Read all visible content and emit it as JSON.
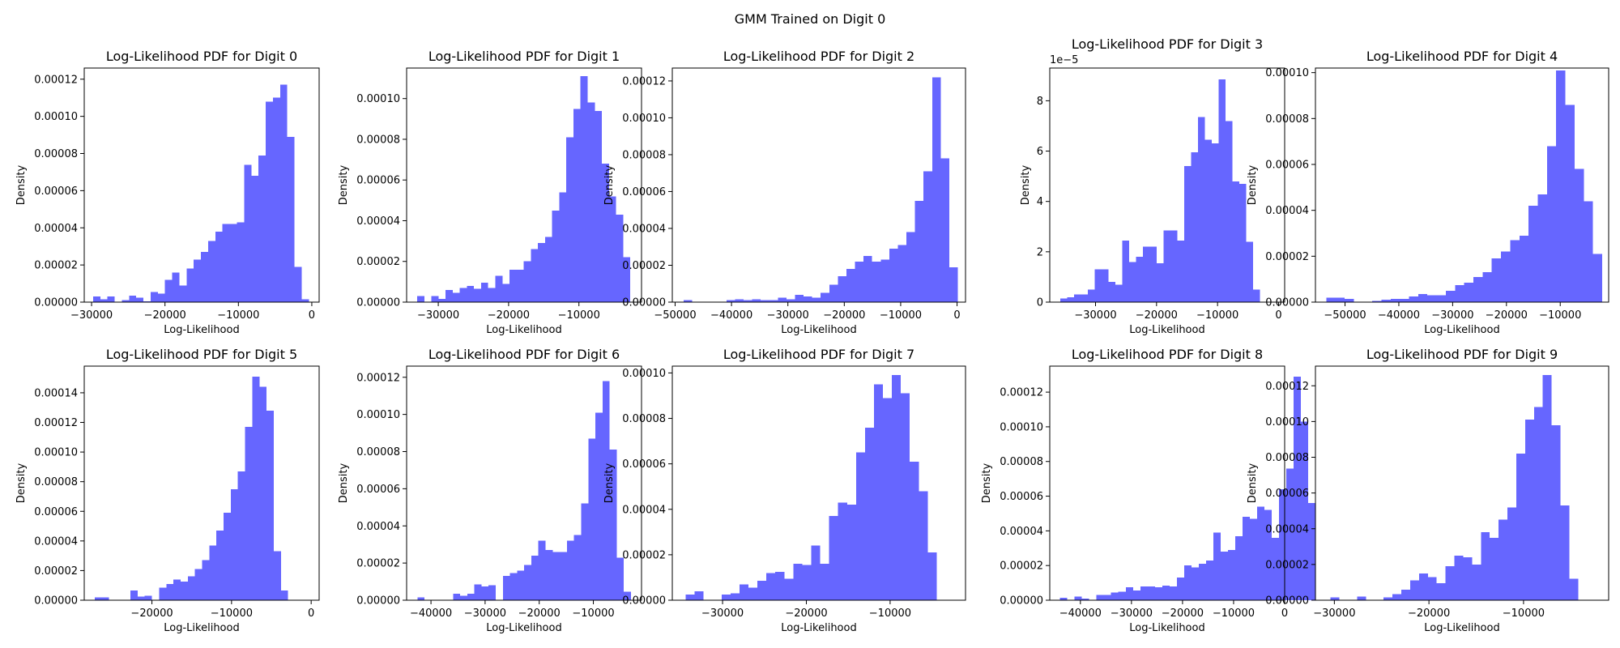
{
  "figure": {
    "suptitle": "GMM Trained on Digit 0"
  },
  "chart_data": [
    {
      "type": "bar",
      "title": "Log-Likelihood PDF for Digit 0",
      "xlabel": "Log-Likelihood",
      "ylabel": "Density",
      "xlim": [
        -31000,
        1000
      ],
      "ylim": [
        0,
        0.000126
      ],
      "xticks": [
        -30000,
        -20000,
        -10000,
        0
      ],
      "xtick_labels": [
        "−30000",
        "−20000",
        "−10000",
        "0"
      ],
      "yticks": [
        0,
        2e-05,
        4e-05,
        6e-05,
        8e-05,
        0.0001,
        0.00012
      ],
      "ytick_labels": [
        "0.00000",
        "0.00002",
        "0.00004",
        "0.00006",
        "0.00008",
        "0.00010",
        "0.00012"
      ],
      "offset_text": "",
      "bin_start": -29800,
      "bin_width": 980,
      "values": [
        3e-06,
        1.5e-06,
        3e-06,
        0,
        1e-06,
        3.5e-06,
        2.5e-06,
        5e-07,
        5.5e-06,
        4.5e-06,
        1.2e-05,
        1.6e-05,
        9e-06,
        1.8e-05,
        2.3e-05,
        2.7e-05,
        3.3e-05,
        3.8e-05,
        4.2e-05,
        4.2e-05,
        4.3e-05,
        7.4e-05,
        6.8e-05,
        7.9e-05,
        0.000108,
        0.00011,
        0.000117,
        8.9e-05,
        1.9e-05,
        1.5e-06
      ]
    },
    {
      "type": "bar",
      "title": "Log-Likelihood PDF for Digit 1",
      "xlabel": "Log-Likelihood",
      "ylabel": "Density",
      "xlim": [
        -34500,
        -1100
      ],
      "ylim": [
        0,
        0.000115
      ],
      "xticks": [
        -30000,
        -20000,
        -10000
      ],
      "xtick_labels": [
        "−30000",
        "−20000",
        "−10000"
      ],
      "yticks": [
        0,
        2e-05,
        4e-05,
        6e-05,
        8e-05,
        0.0001
      ],
      "ytick_labels": [
        "0.00000",
        "0.00002",
        "0.00004",
        "0.00006",
        "0.00008",
        "0.00010"
      ],
      "offset_text": "",
      "bin_start": -33000,
      "bin_width": 1010,
      "values": [
        3e-06,
        0,
        3e-06,
        1.5e-06,
        6e-06,
        4.5e-06,
        7e-06,
        8e-06,
        6.5e-06,
        9.5e-06,
        7e-06,
        1.3e-05,
        9e-06,
        1.6e-05,
        1.6e-05,
        2e-05,
        2.6e-05,
        2.9e-05,
        3.2e-05,
        4.5e-05,
        5.4e-05,
        8.1e-05,
        9.5e-05,
        0.000111,
        9.8e-05,
        9.4e-05,
        6.8e-05,
        5.2e-05,
        4.3e-05,
        2.2e-05
      ]
    },
    {
      "type": "bar",
      "title": "Log-Likelihood PDF for Digit 2",
      "xlabel": "Log-Likelihood",
      "ylabel": "Density",
      "xlim": [
        -50500,
        1500
      ],
      "ylim": [
        0,
        0.000127
      ],
      "xticks": [
        -50000,
        -40000,
        -30000,
        -20000,
        -10000,
        0
      ],
      "xtick_labels": [
        "−50000",
        "−40000",
        "−30000",
        "−20000",
        "−10000",
        "0"
      ],
      "yticks": [
        0,
        2e-05,
        4e-05,
        6e-05,
        8e-05,
        0.0001,
        0.00012
      ],
      "ytick_labels": [
        "0.00000",
        "0.00002",
        "0.00004",
        "0.00006",
        "0.00008",
        "0.00010",
        "0.00012"
      ],
      "offset_text": "",
      "bin_start": -48500,
      "bin_width": 1520,
      "values": [
        1e-06,
        0,
        0,
        0,
        0,
        1e-06,
        1.5e-06,
        1e-06,
        1.5e-06,
        1e-06,
        1e-06,
        2.5e-06,
        1.5e-06,
        4e-06,
        3e-06,
        2.5e-06,
        5e-06,
        9.5e-06,
        1.4e-05,
        1.8e-05,
        2.2e-05,
        2.5e-05,
        2.2e-05,
        2.3e-05,
        2.9e-05,
        3.1e-05,
        3.8e-05,
        5.5e-05,
        7.1e-05,
        0.000122,
        7.8e-05,
        1.9e-05
      ]
    },
    {
      "type": "bar",
      "title": "Log-Likelihood PDF for Digit 3",
      "xlabel": "Log-Likelihood",
      "ylabel": "Density",
      "xlim": [
        -37500,
        1000
      ],
      "ylim": [
        0,
        9.3
      ],
      "xticks": [
        -30000,
        -20000,
        -10000,
        0
      ],
      "xtick_labels": [
        "−30000",
        "−20000",
        "−10000",
        "0"
      ],
      "yticks": [
        0,
        2,
        4,
        6,
        8
      ],
      "ytick_labels": [
        "0",
        "2",
        "4",
        "6",
        "8"
      ],
      "offset_text": "1e−5",
      "bin_start": -35800,
      "bin_width": 1130,
      "values": [
        0.15,
        0.2,
        0.3,
        0.3,
        0.5,
        1.3,
        1.3,
        0.8,
        0.7,
        2.45,
        1.6,
        1.8,
        2.2,
        2.2,
        1.55,
        2.85,
        2.85,
        2.45,
        5.4,
        5.95,
        7.35,
        6.45,
        6.3,
        8.85,
        7.2,
        4.8,
        4.7,
        2.4,
        0.5
      ]
    },
    {
      "type": "bar",
      "title": "Log-Likelihood PDF for Digit 4",
      "xlabel": "Log-Likelihood",
      "ylabel": "Density",
      "xlim": [
        -55500,
        -1000
      ],
      "ylim": [
        0,
        0.000102
      ],
      "xticks": [
        -50000,
        -40000,
        -30000,
        -20000,
        -10000
      ],
      "xtick_labels": [
        "−50000",
        "−40000",
        "−30000",
        "−20000",
        "−10000"
      ],
      "yticks": [
        0,
        2e-05,
        4e-05,
        6e-05,
        8e-05,
        0.0001
      ],
      "ytick_labels": [
        "0.00000",
        "0.00002",
        "0.00004",
        "0.00006",
        "0.00008",
        "0.00010"
      ],
      "offset_text": "",
      "bin_start": -53500,
      "bin_width": 1710,
      "values": [
        2e-06,
        2e-06,
        1.5e-06,
        0,
        0,
        5e-07,
        1e-06,
        1.5e-06,
        1.5e-06,
        2.5e-06,
        3.5e-06,
        3e-06,
        3e-06,
        5e-06,
        7.5e-06,
        8.5e-06,
        1.1e-05,
        1.3e-05,
        1.9e-05,
        2.2e-05,
        2.7e-05,
        2.9e-05,
        4.2e-05,
        4.7e-05,
        6.8e-05,
        0.000101,
        8.6e-05,
        5.8e-05,
        4.4e-05,
        2.1e-05
      ]
    },
    {
      "type": "bar",
      "title": "Log-Likelihood PDF for Digit 5",
      "xlabel": "Log-Likelihood",
      "ylabel": "Density",
      "xlim": [
        -28500,
        1000
      ],
      "ylim": [
        0,
        0.000158
      ],
      "xticks": [
        -20000,
        -10000,
        0
      ],
      "xtick_labels": [
        "−20000",
        "−10000",
        "0"
      ],
      "yticks": [
        0,
        2e-05,
        4e-05,
        6e-05,
        8e-05,
        0.0001,
        0.00012,
        0.00014
      ],
      "ytick_labels": [
        "0.00000",
        "0.00002",
        "0.00004",
        "0.00006",
        "0.00008",
        "0.00010",
        "0.00012",
        "0.00014"
      ],
      "offset_text": "",
      "bin_start": -27200,
      "bin_width": 900,
      "values": [
        2e-06,
        2e-06,
        0,
        0,
        0,
        6.5e-06,
        2.5e-06,
        3e-06,
        0,
        8.5e-06,
        1.1e-05,
        1.4e-05,
        1.25e-05,
        1.6e-05,
        2.1e-05,
        2.7e-05,
        3.7e-05,
        4.7e-05,
        5.9e-05,
        7.5e-05,
        8.7e-05,
        0.000117,
        0.000151,
        0.000144,
        0.000128,
        3.3e-05,
        6.5e-06
      ]
    },
    {
      "type": "bar",
      "title": "Log-Likelihood PDF for Digit 6",
      "xlabel": "Log-Likelihood",
      "ylabel": "Density",
      "xlim": [
        -44500,
        -1100
      ],
      "ylim": [
        0,
        0.000126
      ],
      "xticks": [
        -40000,
        -30000,
        -20000,
        -10000
      ],
      "xtick_labels": [
        "−40000",
        "−30000",
        "−20000",
        "−10000"
      ],
      "yticks": [
        0,
        2e-05,
        4e-05,
        6e-05,
        8e-05,
        0.0001,
        0.00012
      ],
      "ytick_labels": [
        "0.00000",
        "0.00002",
        "0.00004",
        "0.00006",
        "0.00008",
        "0.00010",
        "0.00012"
      ],
      "offset_text": "",
      "bin_start": -42500,
      "bin_width": 1315,
      "values": [
        1.5e-06,
        0,
        0,
        0,
        0,
        3.5e-06,
        2.5e-06,
        3.5e-06,
        8.5e-06,
        7.5e-06,
        8e-06,
        0,
        1.3e-05,
        1.45e-05,
        1.6e-05,
        1.9e-05,
        2.4e-05,
        3.2e-05,
        2.7e-05,
        2.6e-05,
        2.6e-05,
        3.2e-05,
        3.5e-05,
        5.2e-05,
        8.7e-05,
        0.000101,
        0.000118,
        8.1e-05,
        2.3e-05,
        4.5e-06
      ]
    },
    {
      "type": "bar",
      "title": "Log-Likelihood PDF for Digit 7",
      "xlabel": "Log-Likelihood",
      "ylabel": "Density",
      "xlim": [
        -36000,
        -1000
      ],
      "ylim": [
        0,
        0.000103
      ],
      "xticks": [
        -30000,
        -20000,
        -10000
      ],
      "xtick_labels": [
        "−30000",
        "−20000",
        "−10000"
      ],
      "yticks": [
        0,
        2e-05,
        4e-05,
        6e-05,
        8e-05,
        0.0001
      ],
      "ytick_labels": [
        "0.00000",
        "0.00002",
        "0.00004",
        "0.00006",
        "0.00008",
        "0.00010"
      ],
      "offset_text": "",
      "bin_start": -34400,
      "bin_width": 1070,
      "values": [
        2.5e-06,
        4e-06,
        0,
        0,
        2.5e-06,
        3e-06,
        7e-06,
        5.5e-06,
        8.5e-06,
        1.2e-05,
        1.25e-05,
        9.5e-06,
        1.6e-05,
        1.55e-05,
        2.4e-05,
        1.6e-05,
        3.7e-05,
        4.3e-05,
        4.2e-05,
        6.5e-05,
        7.6e-05,
        9.5e-05,
        8.9e-05,
        9.9e-05,
        9.1e-05,
        6.1e-05,
        4.8e-05,
        2.1e-05
      ]
    },
    {
      "type": "bar",
      "title": "Log-Likelihood PDF for Digit 8",
      "xlabel": "Log-Likelihood",
      "ylabel": "Density",
      "xlim": [
        -46000,
        0
      ],
      "ylim": [
        0,
        0.000135
      ],
      "xticks": [
        -40000,
        -30000,
        -20000,
        -10000,
        0
      ],
      "xtick_labels": [
        "−40000",
        "−30000",
        "−20000",
        "−10000",
        "0"
      ],
      "yticks": [
        0,
        2e-05,
        4e-05,
        6e-05,
        8e-05,
        0.0001,
        0.00012
      ],
      "ytick_labels": [
        "0.00000",
        "0.00002",
        "0.00004",
        "0.00006",
        "0.00008",
        "0.00010",
        "0.00012"
      ],
      "offset_text": "",
      "bin_start": -44000,
      "bin_width": 1430,
      "values": [
        1.5e-06,
        0,
        2e-06,
        1e-06,
        0,
        3e-06,
        3e-06,
        4.5e-06,
        5e-06,
        7.5e-06,
        5.5e-06,
        8e-06,
        8e-06,
        7.5e-06,
        8.5e-06,
        8e-06,
        1.3e-05,
        2e-05,
        1.9e-05,
        2.1e-05,
        2.3e-05,
        3.9e-05,
        2.8e-05,
        2.9e-05,
        3.7e-05,
        4.8e-05,
        4.7e-05,
        5.4e-05,
        5.2e-05,
        3.6e-05,
        6.4e-05,
        7.6e-05,
        0.000129,
        0.000103,
        5.6e-05
      ]
    },
    {
      "type": "bar",
      "title": "Log-Likelihood PDF for Digit 9",
      "xlabel": "Log-Likelihood",
      "ylabel": "Density",
      "xlim": [
        -32000,
        -1000
      ],
      "ylim": [
        0,
        0.000131
      ],
      "xticks": [
        -30000,
        -20000,
        -10000
      ],
      "xtick_labels": [
        "−30000",
        "−20000",
        "−10000"
      ],
      "yticks": [
        0,
        2e-05,
        4e-05,
        6e-05,
        8e-05,
        0.0001,
        0.00012
      ],
      "ytick_labels": [
        "0.00000",
        "0.00002",
        "0.00004",
        "0.00006",
        "0.00008",
        "0.00010",
        "0.00012"
      ],
      "offset_text": "",
      "bin_start": -30400,
      "bin_width": 935,
      "values": [
        1.5e-06,
        0,
        0,
        2e-06,
        0,
        0,
        1.5e-06,
        3.5e-06,
        6e-06,
        1.1e-05,
        1.5e-05,
        1.3e-05,
        9.5e-06,
        1.9e-05,
        2.5e-05,
        2.4e-05,
        2e-05,
        3.8e-05,
        3.5e-05,
        4.5e-05,
        5.2e-05,
        8.2e-05,
        0.000101,
        0.000108,
        0.000126,
        9.8e-05,
        5.3e-05,
        1.2e-05
      ]
    }
  ]
}
